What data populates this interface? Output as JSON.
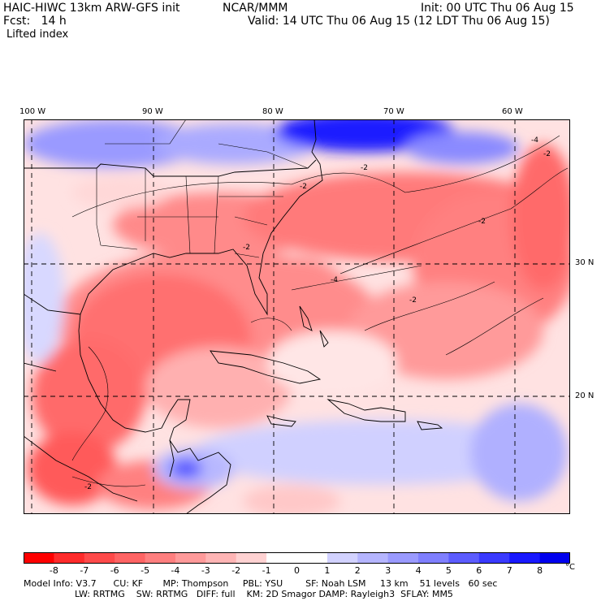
{
  "header": {
    "model_title": "HAIC-HIWC 13km ARW-GFS init",
    "org": "NCAR/MMM",
    "init": "Init: 00 UTC Thu 06 Aug 15",
    "fcst": "Fcst:   14 h",
    "valid": "Valid: 14 UTC Thu 06 Aug 15 (12 LDT Thu 06 Aug 15)",
    "field": "Lifted index"
  },
  "map": {
    "lon_labels": [
      "100 W",
      "90 W",
      "80 W",
      "70 W",
      "60 W"
    ],
    "lat_labels": [
      "30 N",
      "20 N"
    ],
    "contour_labels": [
      "-2",
      "-2",
      "-2",
      "-2",
      "-4",
      "-2",
      "-2",
      "-4",
      "-2"
    ]
  },
  "colorbar": {
    "ticks": [
      "-8",
      "-7",
      "-6",
      "-5",
      "-4",
      "-3",
      "-2",
      "-1",
      "0",
      "1",
      "2",
      "3",
      "4",
      "5",
      "6",
      "7",
      "8"
    ],
    "unit": "°C",
    "colors": [
      "#ff0000",
      "#ff2b2b",
      "#ff4a4a",
      "#ff6464",
      "#ff7f7f",
      "#ff9a9a",
      "#ffb5b5",
      "#ffd2d2",
      "#ffffff",
      "#ffffff",
      "#d2d2ff",
      "#b5b5ff",
      "#9a9aff",
      "#7f7fff",
      "#5c5cff",
      "#3a3aff",
      "#1818ff",
      "#0000ee"
    ]
  },
  "info": {
    "line1": "Model Info: V3.7      CU: KF       MP: Thompson     PBL: YSU        SF: Noah LSM     13 km    51 levels   60 sec",
    "line2": "                  LW: RRTMG    SW: RRTMG   DIFF: full    KM: 2D Smagor DAMP: Rayleigh3  SFLAY: MM5"
  }
}
